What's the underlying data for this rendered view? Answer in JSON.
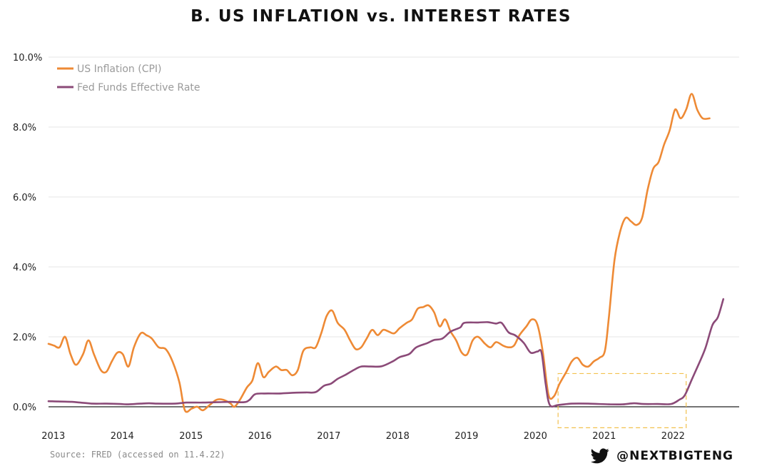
{
  "title": "B. US INFLATION vs. INTEREST RATES",
  "source": "Source: FRED (accessed on 11.4.22)",
  "handle": "@NEXTBIGTENG",
  "icons": {
    "social": "twitter-bird-icon"
  },
  "colors": {
    "inflation": "#EE8A35",
    "fed_rate": "#8B4A78",
    "highlight_box": "#F2C14E",
    "grid": "#e4e4e4"
  },
  "chart_data": {
    "type": "line",
    "title": "B. US INFLATION vs. INTEREST RATES",
    "xlabel": "",
    "ylabel": "",
    "ylim": [
      0,
      10
    ],
    "x_ticks": [
      "2013",
      "2014",
      "2015",
      "2016",
      "2017",
      "2018",
      "2019",
      "2020",
      "2021",
      "2022"
    ],
    "y_ticks": [
      "0.0%",
      "2.0%",
      "4.0%",
      "6.0%",
      "8.0%",
      "10.0%"
    ],
    "grid": "horizontal",
    "legend": "top-left",
    "series": [
      {
        "name": "US Inflation (CPI)",
        "color": "#EE8A35",
        "points": [
          [
            2012.96,
            1.8
          ],
          [
            2013.04,
            1.75
          ],
          [
            2013.12,
            1.7
          ],
          [
            2013.2,
            2.0
          ],
          [
            2013.28,
            1.5
          ],
          [
            2013.36,
            1.2
          ],
          [
            2013.46,
            1.5
          ],
          [
            2013.54,
            1.9
          ],
          [
            2013.62,
            1.5
          ],
          [
            2013.72,
            1.05
          ],
          [
            2013.8,
            1.0
          ],
          [
            2013.88,
            1.3
          ],
          [
            2013.96,
            1.55
          ],
          [
            2014.04,
            1.5
          ],
          [
            2014.12,
            1.15
          ],
          [
            2014.2,
            1.7
          ],
          [
            2014.3,
            2.1
          ],
          [
            2014.38,
            2.05
          ],
          [
            2014.46,
            1.95
          ],
          [
            2014.56,
            1.7
          ],
          [
            2014.66,
            1.65
          ],
          [
            2014.76,
            1.3
          ],
          [
            2014.86,
            0.7
          ],
          [
            2014.94,
            -0.1
          ],
          [
            2015.04,
            -0.05
          ],
          [
            2015.12,
            0.0
          ],
          [
            2015.2,
            -0.1
          ],
          [
            2015.3,
            0.05
          ],
          [
            2015.4,
            0.2
          ],
          [
            2015.5,
            0.2
          ],
          [
            2015.6,
            0.1
          ],
          [
            2015.66,
            0.0
          ],
          [
            2015.74,
            0.2
          ],
          [
            2015.84,
            0.55
          ],
          [
            2015.92,
            0.75
          ],
          [
            2016.0,
            1.25
          ],
          [
            2016.08,
            0.85
          ],
          [
            2016.16,
            1.0
          ],
          [
            2016.26,
            1.15
          ],
          [
            2016.34,
            1.05
          ],
          [
            2016.42,
            1.05
          ],
          [
            2016.5,
            0.9
          ],
          [
            2016.58,
            1.05
          ],
          [
            2016.66,
            1.6
          ],
          [
            2016.76,
            1.7
          ],
          [
            2016.84,
            1.7
          ],
          [
            2016.92,
            2.1
          ],
          [
            2017.0,
            2.6
          ],
          [
            2017.08,
            2.75
          ],
          [
            2017.16,
            2.4
          ],
          [
            2017.26,
            2.2
          ],
          [
            2017.34,
            1.9
          ],
          [
            2017.42,
            1.65
          ],
          [
            2017.5,
            1.7
          ],
          [
            2017.58,
            1.95
          ],
          [
            2017.66,
            2.2
          ],
          [
            2017.74,
            2.05
          ],
          [
            2017.82,
            2.2
          ],
          [
            2017.9,
            2.15
          ],
          [
            2017.98,
            2.1
          ],
          [
            2018.06,
            2.25
          ],
          [
            2018.16,
            2.4
          ],
          [
            2018.24,
            2.5
          ],
          [
            2018.32,
            2.8
          ],
          [
            2018.4,
            2.85
          ],
          [
            2018.48,
            2.9
          ],
          [
            2018.56,
            2.7
          ],
          [
            2018.64,
            2.3
          ],
          [
            2018.72,
            2.5
          ],
          [
            2018.8,
            2.15
          ],
          [
            2018.88,
            1.9
          ],
          [
            2018.96,
            1.55
          ],
          [
            2019.04,
            1.5
          ],
          [
            2019.12,
            1.9
          ],
          [
            2019.2,
            2.0
          ],
          [
            2019.3,
            1.8
          ],
          [
            2019.38,
            1.7
          ],
          [
            2019.46,
            1.85
          ],
          [
            2019.56,
            1.75
          ],
          [
            2019.64,
            1.7
          ],
          [
            2019.72,
            1.75
          ],
          [
            2019.8,
            2.05
          ],
          [
            2019.9,
            2.3
          ],
          [
            2019.98,
            2.5
          ],
          [
            2020.06,
            2.35
          ],
          [
            2020.14,
            1.55
          ],
          [
            2020.22,
            0.35
          ],
          [
            2020.3,
            0.3
          ],
          [
            2020.38,
            0.65
          ],
          [
            2020.48,
            1.0
          ],
          [
            2020.56,
            1.3
          ],
          [
            2020.64,
            1.4
          ],
          [
            2020.72,
            1.2
          ],
          [
            2020.8,
            1.15
          ],
          [
            2020.88,
            1.3
          ],
          [
            2020.96,
            1.4
          ],
          [
            2021.04,
            1.6
          ],
          [
            2021.1,
            2.6
          ],
          [
            2021.18,
            4.2
          ],
          [
            2021.26,
            5.0
          ],
          [
            2021.34,
            5.4
          ],
          [
            2021.42,
            5.3
          ],
          [
            2021.5,
            5.2
          ],
          [
            2021.58,
            5.4
          ],
          [
            2021.66,
            6.2
          ],
          [
            2021.74,
            6.8
          ],
          [
            2021.82,
            7.0
          ],
          [
            2021.9,
            7.5
          ],
          [
            2021.98,
            7.9
          ],
          [
            2022.06,
            8.5
          ],
          [
            2022.14,
            8.25
          ],
          [
            2022.22,
            8.5
          ],
          [
            2022.3,
            8.95
          ],
          [
            2022.38,
            8.5
          ],
          [
            2022.46,
            8.25
          ],
          [
            2022.56,
            8.25
          ]
        ]
      },
      {
        "name": "Fed Funds Effective Rate",
        "color": "#8B4A78",
        "points": [
          [
            2012.96,
            0.16
          ],
          [
            2013.1,
            0.15
          ],
          [
            2013.3,
            0.14
          ],
          [
            2013.42,
            0.12
          ],
          [
            2013.6,
            0.09
          ],
          [
            2013.8,
            0.09
          ],
          [
            2014.0,
            0.08
          ],
          [
            2014.1,
            0.07
          ],
          [
            2014.3,
            0.09
          ],
          [
            2014.42,
            0.1
          ],
          [
            2014.55,
            0.09
          ],
          [
            2014.8,
            0.09
          ],
          [
            2014.96,
            0.12
          ],
          [
            2015.2,
            0.12
          ],
          [
            2015.4,
            0.13
          ],
          [
            2015.6,
            0.14
          ],
          [
            2015.8,
            0.13
          ],
          [
            2015.88,
            0.2
          ],
          [
            2015.96,
            0.36
          ],
          [
            2016.1,
            0.38
          ],
          [
            2016.3,
            0.38
          ],
          [
            2016.5,
            0.4
          ],
          [
            2016.7,
            0.41
          ],
          [
            2016.84,
            0.42
          ],
          [
            2016.96,
            0.6
          ],
          [
            2017.06,
            0.66
          ],
          [
            2017.16,
            0.8
          ],
          [
            2017.26,
            0.9
          ],
          [
            2017.4,
            1.06
          ],
          [
            2017.5,
            1.15
          ],
          [
            2017.64,
            1.15
          ],
          [
            2017.8,
            1.16
          ],
          [
            2017.96,
            1.3
          ],
          [
            2018.06,
            1.42
          ],
          [
            2018.2,
            1.51
          ],
          [
            2018.3,
            1.7
          ],
          [
            2018.46,
            1.82
          ],
          [
            2018.56,
            1.91
          ],
          [
            2018.68,
            1.95
          ],
          [
            2018.8,
            2.15
          ],
          [
            2018.94,
            2.27
          ],
          [
            2019.0,
            2.4
          ],
          [
            2019.2,
            2.41
          ],
          [
            2019.34,
            2.42
          ],
          [
            2019.46,
            2.38
          ],
          [
            2019.54,
            2.4
          ],
          [
            2019.64,
            2.13
          ],
          [
            2019.74,
            2.04
          ],
          [
            2019.86,
            1.83
          ],
          [
            2019.96,
            1.55
          ],
          [
            2020.06,
            1.58
          ],
          [
            2020.12,
            1.55
          ],
          [
            2020.18,
            0.65
          ],
          [
            2020.24,
            0.05
          ],
          [
            2020.36,
            0.05
          ],
          [
            2020.56,
            0.09
          ],
          [
            2020.8,
            0.09
          ],
          [
            2021.1,
            0.07
          ],
          [
            2021.3,
            0.07
          ],
          [
            2021.46,
            0.1
          ],
          [
            2021.6,
            0.08
          ],
          [
            2021.8,
            0.08
          ],
          [
            2022.0,
            0.08
          ],
          [
            2022.12,
            0.2
          ],
          [
            2022.2,
            0.33
          ],
          [
            2022.3,
            0.77
          ],
          [
            2022.4,
            1.21
          ],
          [
            2022.5,
            1.68
          ],
          [
            2022.6,
            2.33
          ],
          [
            2022.68,
            2.56
          ],
          [
            2022.76,
            3.08
          ]
        ]
      }
    ],
    "annotation": {
      "type": "dashed-box",
      "x_range": [
        2020.36,
        2022.22
      ],
      "y_range": [
        -0.6,
        0.95
      ]
    }
  }
}
